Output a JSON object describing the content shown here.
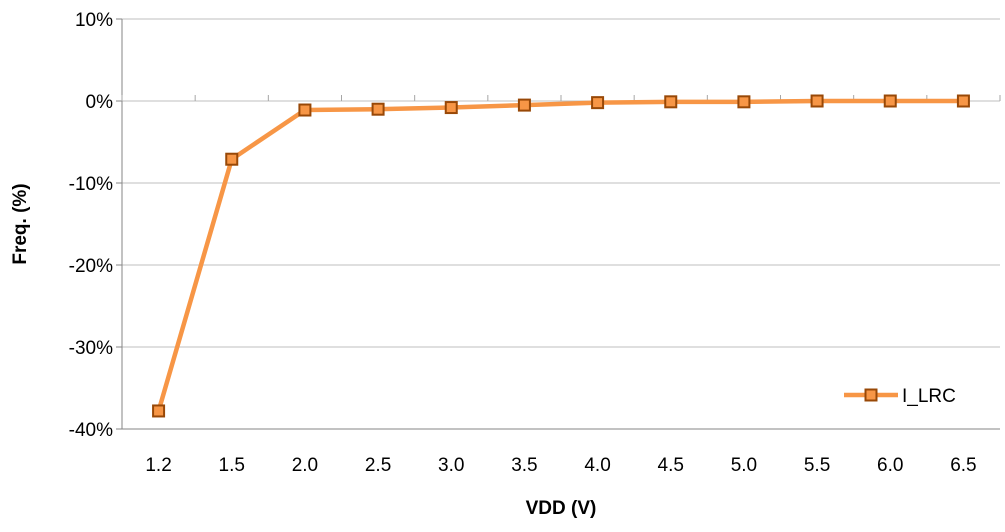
{
  "chart_data": {
    "type": "line",
    "title": "",
    "xlabel": "VDD (V)",
    "ylabel": "Freq. (%)",
    "categories": [
      "1.2",
      "1.5",
      "2.0",
      "2.5",
      "3.0",
      "3.5",
      "4.0",
      "4.5",
      "5.0",
      "5.5",
      "6.0",
      "6.5"
    ],
    "y_tick_labels": [
      "10%",
      "0%",
      "-10%",
      "-20%",
      "-30%",
      "-40%"
    ],
    "y_ticks": [
      10,
      0,
      -10,
      -20,
      -30,
      -40
    ],
    "ylim": [
      -40,
      10
    ],
    "grid": true,
    "legend_position": "bottom-right",
    "series": [
      {
        "name": "I_LRC",
        "color": "#F79646",
        "marker_fill": "#F79646",
        "marker_edge": "#984807",
        "values": [
          -37.8,
          -7.1,
          -1.1,
          -1.0,
          -0.8,
          -0.5,
          -0.2,
          -0.1,
          -0.1,
          0.0,
          0.0,
          0.0
        ]
      }
    ]
  }
}
